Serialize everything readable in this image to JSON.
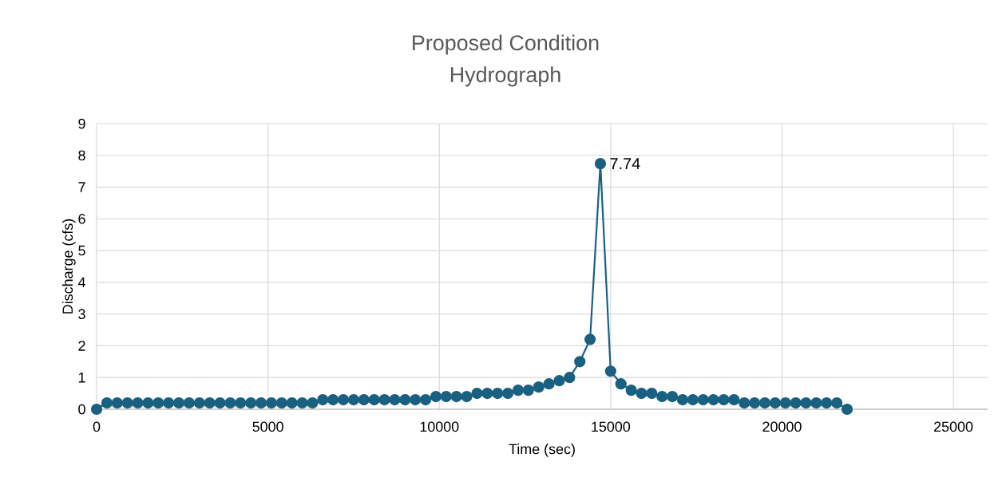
{
  "chart_data": {
    "type": "line",
    "title": "Proposed Condition\nHydrograph",
    "xlabel": "Time (sec)",
    "ylabel": "Discharge (cfs)",
    "x": [
      0,
      300,
      600,
      900,
      1200,
      1500,
      1800,
      2100,
      2400,
      2700,
      3000,
      3300,
      3600,
      3900,
      4200,
      4500,
      4800,
      5100,
      5400,
      5700,
      6000,
      6300,
      6600,
      6900,
      7200,
      7500,
      7800,
      8100,
      8400,
      8700,
      9000,
      9300,
      9600,
      9900,
      10200,
      10500,
      10800,
      11100,
      11400,
      11700,
      12000,
      12300,
      12600,
      12900,
      13200,
      13500,
      13800,
      14100,
      14400,
      14700,
      15000,
      15300,
      15600,
      15900,
      16200,
      16500,
      16800,
      17100,
      17400,
      17700,
      18000,
      18300,
      18600,
      18900,
      19200,
      19500,
      19800,
      20100,
      20400,
      20700,
      21000,
      21300,
      21600,
      21900
    ],
    "series": [
      {
        "color": "#1a6080",
        "values": [
          0,
          0.2,
          0.2,
          0.2,
          0.2,
          0.2,
          0.2,
          0.2,
          0.2,
          0.2,
          0.2,
          0.2,
          0.2,
          0.2,
          0.2,
          0.2,
          0.2,
          0.2,
          0.2,
          0.2,
          0.2,
          0.2,
          0.3,
          0.3,
          0.3,
          0.3,
          0.3,
          0.3,
          0.3,
          0.3,
          0.3,
          0.3,
          0.3,
          0.4,
          0.4,
          0.4,
          0.4,
          0.5,
          0.5,
          0.5,
          0.5,
          0.6,
          0.6,
          0.7,
          0.8,
          0.9,
          1.0,
          1.5,
          2.2,
          7.74,
          1.2,
          0.8,
          0.6,
          0.5,
          0.5,
          0.4,
          0.4,
          0.3,
          0.3,
          0.3,
          0.3,
          0.3,
          0.3,
          0.2,
          0.2,
          0.2,
          0.2,
          0.2,
          0.2,
          0.2,
          0.2,
          0.2,
          0.2,
          0
        ],
        "value_labels": [
          null,
          null,
          null,
          null,
          null,
          null,
          null,
          null,
          null,
          null,
          null,
          null,
          null,
          null,
          null,
          null,
          null,
          null,
          null,
          null,
          null,
          null,
          null,
          null,
          null,
          null,
          null,
          null,
          null,
          null,
          null,
          null,
          null,
          null,
          null,
          null,
          null,
          null,
          null,
          null,
          null,
          null,
          null,
          null,
          null,
          null,
          null,
          null,
          null,
          "7.74",
          null,
          null,
          null,
          null,
          null,
          null,
          null,
          null,
          null,
          null,
          null,
          null,
          null,
          null,
          null,
          null,
          null,
          null,
          null,
          null,
          null,
          null,
          null,
          null
        ]
      }
    ],
    "xlim": [
      0,
      26000
    ],
    "xticks": [
      0,
      5000,
      10000,
      15000,
      20000,
      25000
    ],
    "ylim": [
      0,
      9
    ],
    "yticks": [
      0,
      1,
      2,
      3,
      4,
      5,
      6,
      7,
      8,
      9
    ],
    "grid": true,
    "marker": "circle",
    "line_style": "solid"
  }
}
